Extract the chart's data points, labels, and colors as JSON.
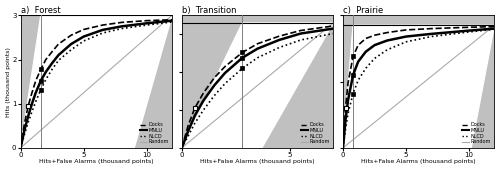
{
  "panels": [
    {
      "title": "a)  Forest",
      "xlim": [
        0,
        12
      ],
      "ylim": [
        0,
        3
      ],
      "xticks": [
        0,
        5,
        10
      ],
      "yticks": [
        0,
        1,
        2,
        3
      ],
      "hits_misses": 3.0,
      "vertical_x": 1.6,
      "total_x": 12.0,
      "docks": {
        "x": [
          0,
          0.3,
          0.6,
          0.9,
          1.2,
          1.6,
          2.0,
          2.5,
          3.0,
          4.0,
          5.0,
          6.5,
          8.0,
          10.0,
          12.0
        ],
        "y": [
          0,
          0.55,
          0.95,
          1.25,
          1.52,
          1.78,
          2.0,
          2.18,
          2.35,
          2.55,
          2.68,
          2.78,
          2.84,
          2.88,
          2.9
        ]
      },
      "mnlu": {
        "x": [
          0,
          0.3,
          0.6,
          0.9,
          1.2,
          1.6,
          2.0,
          2.5,
          3.0,
          4.0,
          5.0,
          6.5,
          8.0,
          10.0,
          12.0
        ],
        "y": [
          0,
          0.4,
          0.72,
          1.0,
          1.25,
          1.52,
          1.72,
          1.92,
          2.1,
          2.35,
          2.52,
          2.67,
          2.75,
          2.82,
          2.88
        ]
      },
      "nlcd": {
        "x": [
          0,
          0.3,
          0.6,
          0.9,
          1.2,
          1.6,
          2.0,
          2.5,
          3.0,
          4.0,
          5.0,
          6.5,
          8.0,
          10.0,
          12.0
        ],
        "y": [
          0,
          0.3,
          0.58,
          0.82,
          1.05,
          1.32,
          1.55,
          1.78,
          1.98,
          2.22,
          2.42,
          2.6,
          2.7,
          2.78,
          2.85
        ]
      },
      "dot75_docks": [
        1.6,
        1.78
      ],
      "dot75_mnlu": [
        1.6,
        1.52
      ],
      "dot75_nlcd": [
        1.6,
        1.32
      ],
      "sq30_docks": [
        0.6,
        0.95
      ]
    },
    {
      "title": "b)  Transition",
      "xlim": [
        0,
        7
      ],
      "ylim": [
        0,
        3.5
      ],
      "xticks": [
        0,
        5
      ],
      "yticks": [
        0,
        1,
        2,
        3
      ],
      "hits_misses": 3.3,
      "vertical_x": 2.8,
      "total_x": 7.0,
      "docks": {
        "x": [
          0,
          0.3,
          0.6,
          1.0,
          1.5,
          2.0,
          2.8,
          3.5,
          4.5,
          5.5,
          7.0
        ],
        "y": [
          0,
          0.6,
          1.05,
          1.45,
          1.85,
          2.15,
          2.52,
          2.75,
          2.95,
          3.1,
          3.22
        ]
      },
      "mnlu": {
        "x": [
          0,
          0.3,
          0.6,
          1.0,
          1.5,
          2.0,
          2.8,
          3.5,
          4.5,
          5.5,
          7.0
        ],
        "y": [
          0,
          0.45,
          0.85,
          1.25,
          1.65,
          1.98,
          2.38,
          2.62,
          2.85,
          3.02,
          3.15
        ]
      },
      "nlcd": {
        "x": [
          0,
          0.3,
          0.6,
          1.0,
          1.5,
          2.0,
          2.8,
          3.5,
          4.5,
          5.5,
          7.0
        ],
        "y": [
          0,
          0.32,
          0.65,
          1.0,
          1.38,
          1.7,
          2.1,
          2.38,
          2.65,
          2.85,
          3.02
        ]
      },
      "dot75_docks": [
        2.8,
        2.52
      ],
      "dot75_mnlu": [
        2.8,
        2.38
      ],
      "dot75_nlcd": [
        2.8,
        2.1
      ],
      "sq30_docks": [
        0.6,
        1.05
      ]
    },
    {
      "title": "c)  Prairie",
      "xlim": [
        0,
        12
      ],
      "ylim": [
        0,
        2
      ],
      "xticks": [
        0,
        5,
        10
      ],
      "yticks": [
        0,
        1,
        2
      ],
      "hits_misses": 1.85,
      "vertical_x": 0.8,
      "total_x": 12.0,
      "docks": {
        "x": [
          0,
          0.2,
          0.4,
          0.8,
          1.2,
          1.8,
          2.5,
          3.5,
          5.0,
          7.0,
          10.0,
          12.0
        ],
        "y": [
          0,
          0.6,
          0.98,
          1.38,
          1.55,
          1.65,
          1.7,
          1.74,
          1.78,
          1.8,
          1.82,
          1.83
        ]
      },
      "mnlu": {
        "x": [
          0,
          0.2,
          0.4,
          0.8,
          1.2,
          1.8,
          2.5,
          3.5,
          5.0,
          7.0,
          10.0,
          12.0
        ],
        "y": [
          0,
          0.42,
          0.72,
          1.1,
          1.3,
          1.45,
          1.55,
          1.62,
          1.68,
          1.72,
          1.77,
          1.8
        ]
      },
      "nlcd": {
        "x": [
          0,
          0.2,
          0.4,
          0.8,
          1.2,
          1.8,
          2.5,
          3.5,
          5.0,
          7.0,
          10.0,
          12.0
        ],
        "y": [
          0,
          0.28,
          0.52,
          0.82,
          1.02,
          1.2,
          1.35,
          1.48,
          1.6,
          1.68,
          1.75,
          1.79
        ]
      },
      "dot75_docks": [
        0.8,
        1.38
      ],
      "dot75_mnlu": [
        0.8,
        1.1
      ],
      "dot75_nlcd": [
        0.8,
        0.82
      ],
      "sq30_docks": [
        0.2,
        0.6
      ]
    }
  ],
  "gray_color": "#aaaaaa",
  "bg_gray": "#c0c0c0",
  "xlabel": "Hits+False Alarms (thousand points)",
  "ylabel": "Hits (thousand points)"
}
